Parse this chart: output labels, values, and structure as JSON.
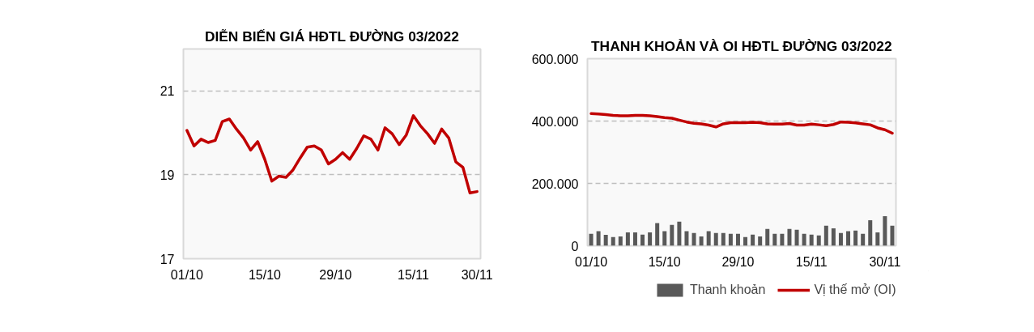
{
  "chart_data": [
    {
      "type": "line",
      "title": "DIỄN BIẾN GIÁ HĐTL ĐƯỜNG 03/2022",
      "categories": [
        "01/10",
        null,
        null,
        null,
        null,
        null,
        null,
        null,
        null,
        null,
        null,
        "15/10",
        null,
        null,
        null,
        null,
        null,
        null,
        null,
        null,
        null,
        "29/10",
        null,
        null,
        null,
        null,
        null,
        null,
        null,
        null,
        null,
        null,
        "15/11",
        null,
        null,
        null,
        null,
        null,
        null,
        null,
        null,
        "30/11"
      ],
      "series": [
        {
          "color": "#c00000",
          "values": [
            20.06,
            19.69,
            19.85,
            19.77,
            19.82,
            20.27,
            20.33,
            20.09,
            19.88,
            19.59,
            19.79,
            19.37,
            18.85,
            18.97,
            18.94,
            19.12,
            19.4,
            19.66,
            19.69,
            19.59,
            19.26,
            19.37,
            19.53,
            19.37,
            19.63,
            19.93,
            19.85,
            19.59,
            20.12,
            19.98,
            19.72,
            19.95,
            20.41,
            20.17,
            19.98,
            19.75,
            20.09,
            19.88,
            19.31,
            19.18,
            18.57,
            18.6
          ]
        }
      ],
      "ylim": [
        17,
        22
      ],
      "yticks": [
        17,
        19,
        21
      ],
      "grid": "y",
      "line_style": "solid"
    },
    {
      "type": "bar",
      "title": "THANH KHOẢN VÀ OI HĐTL ĐƯỜNG 03/2022",
      "categories": [
        "01/10",
        null,
        null,
        null,
        null,
        null,
        null,
        null,
        null,
        null,
        "15/10",
        null,
        null,
        null,
        null,
        null,
        null,
        null,
        null,
        null,
        "29/10",
        null,
        null,
        null,
        null,
        null,
        null,
        null,
        null,
        null,
        "15/11",
        null,
        null,
        null,
        null,
        null,
        null,
        null,
        null,
        null,
        "30/11",
        null
      ],
      "series": [
        {
          "name": "Thanh khoản",
          "type": "bar",
          "color": "#595959",
          "values": [
            38000,
            47000,
            35000,
            28000,
            30000,
            43000,
            43000,
            36000,
            43000,
            73000,
            47000,
            67000,
            77000,
            47000,
            41000,
            30000,
            47000,
            41000,
            41000,
            38000,
            38000,
            28000,
            36000,
            30000,
            54000,
            38000,
            38000,
            54000,
            51000,
            38000,
            36000,
            33000,
            64000,
            56000,
            41000,
            47000,
            49000,
            38000,
            82000,
            43000,
            95000,
            64000
          ]
        },
        {
          "name": "Vị thế mở (OI)",
          "type": "line",
          "color": "#c00000",
          "values": [
            424000,
            423000,
            421000,
            418000,
            417000,
            417000,
            418000,
            418000,
            417000,
            414000,
            411000,
            409000,
            403000,
            397000,
            393000,
            391000,
            387000,
            381000,
            391000,
            395000,
            395000,
            395000,
            396000,
            395000,
            391000,
            390000,
            390000,
            392000,
            387000,
            387000,
            390000,
            388000,
            385000,
            389000,
            397000,
            396000,
            394000,
            391000,
            388000,
            378000,
            372000,
            361000
          ]
        }
      ],
      "ylim": [
        0,
        600000
      ],
      "yticks": [
        {
          "value": 0,
          "label": "0"
        },
        {
          "value": 200000,
          "label": "200.000"
        },
        {
          "value": 400000,
          "label": "400.000"
        },
        {
          "value": 600000,
          "label": "600.000"
        }
      ],
      "grid": "y",
      "line_style": "solid",
      "legend": "bottom"
    }
  ]
}
